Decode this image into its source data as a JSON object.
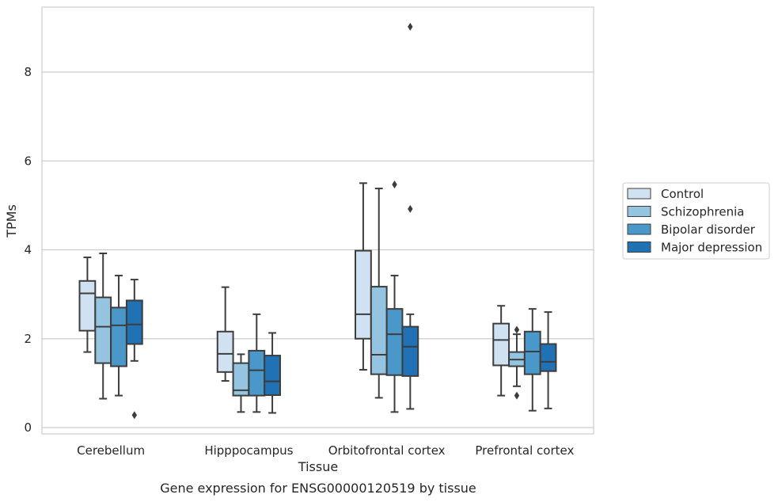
{
  "chart_data": {
    "type": "boxplot",
    "caption": "Gene expression for ENSG00000120519 by tissue",
    "xlabel": "Tissue",
    "ylabel": "TPMs",
    "ylim": [
      -0.15,
      9.6
    ],
    "yticks": [
      0,
      2,
      4,
      6,
      8
    ],
    "grid": true,
    "legend_position": "right",
    "categories": [
      "Cerebellum",
      "Hipppocampus",
      "Orbitofrontal cortex",
      "Prefrontal cortex"
    ],
    "series": [
      {
        "name": "Control",
        "color": "#d0e1f2",
        "boxes": [
          {
            "whisker_low": 1.7,
            "q1": 2.18,
            "median": 3.02,
            "q3": 3.3,
            "whisker_high": 3.83,
            "outliers": []
          },
          {
            "whisker_low": 1.05,
            "q1": 1.25,
            "median": 1.66,
            "q3": 2.16,
            "whisker_high": 3.16,
            "outliers": []
          },
          {
            "whisker_low": 1.3,
            "q1": 2.0,
            "median": 2.55,
            "q3": 3.98,
            "whisker_high": 5.5,
            "outliers": []
          },
          {
            "whisker_low": 0.72,
            "q1": 1.4,
            "median": 1.97,
            "q3": 2.34,
            "whisker_high": 2.74,
            "outliers": []
          }
        ]
      },
      {
        "name": "Schizophrenia",
        "color": "#94c4df",
        "boxes": [
          {
            "whisker_low": 0.65,
            "q1": 1.45,
            "median": 2.27,
            "q3": 2.93,
            "whisker_high": 3.92,
            "outliers": []
          },
          {
            "whisker_low": 0.35,
            "q1": 0.72,
            "median": 0.84,
            "q3": 1.45,
            "whisker_high": 1.65,
            "outliers": []
          },
          {
            "whisker_low": 0.67,
            "q1": 1.2,
            "median": 1.64,
            "q3": 3.17,
            "whisker_high": 5.38,
            "outliers": []
          },
          {
            "whisker_low": 0.93,
            "q1": 1.38,
            "median": 1.53,
            "q3": 1.7,
            "whisker_high": 2.1,
            "outliers": [
              2.2,
              0.72
            ]
          }
        ]
      },
      {
        "name": "Bipolar disorder",
        "color": "#4a98c9",
        "boxes": [
          {
            "whisker_low": 0.72,
            "q1": 1.38,
            "median": 2.3,
            "q3": 2.7,
            "whisker_high": 3.42,
            "outliers": []
          },
          {
            "whisker_low": 0.35,
            "q1": 0.72,
            "median": 1.29,
            "q3": 1.73,
            "whisker_high": 2.55,
            "outliers": []
          },
          {
            "whisker_low": 0.35,
            "q1": 1.18,
            "median": 2.1,
            "q3": 2.67,
            "whisker_high": 3.42,
            "outliers": [
              5.47
            ]
          },
          {
            "whisker_low": 0.38,
            "q1": 1.2,
            "median": 1.71,
            "q3": 2.16,
            "whisker_high": 2.67,
            "outliers": []
          }
        ]
      },
      {
        "name": "Major depression",
        "color": "#2171b5",
        "boxes": [
          {
            "whisker_low": 1.5,
            "q1": 1.88,
            "median": 2.32,
            "q3": 2.86,
            "whisker_high": 3.33,
            "outliers": [
              0.28
            ]
          },
          {
            "whisker_low": 0.33,
            "q1": 0.73,
            "median": 1.04,
            "q3": 1.62,
            "whisker_high": 2.13,
            "outliers": []
          },
          {
            "whisker_low": 0.42,
            "q1": 1.16,
            "median": 1.82,
            "q3": 2.27,
            "whisker_high": 2.55,
            "outliers": [
              9.02,
              4.92
            ]
          },
          {
            "whisker_low": 0.43,
            "q1": 1.27,
            "median": 1.48,
            "q3": 1.88,
            "whisker_high": 2.6,
            "outliers": []
          }
        ]
      }
    ]
  }
}
